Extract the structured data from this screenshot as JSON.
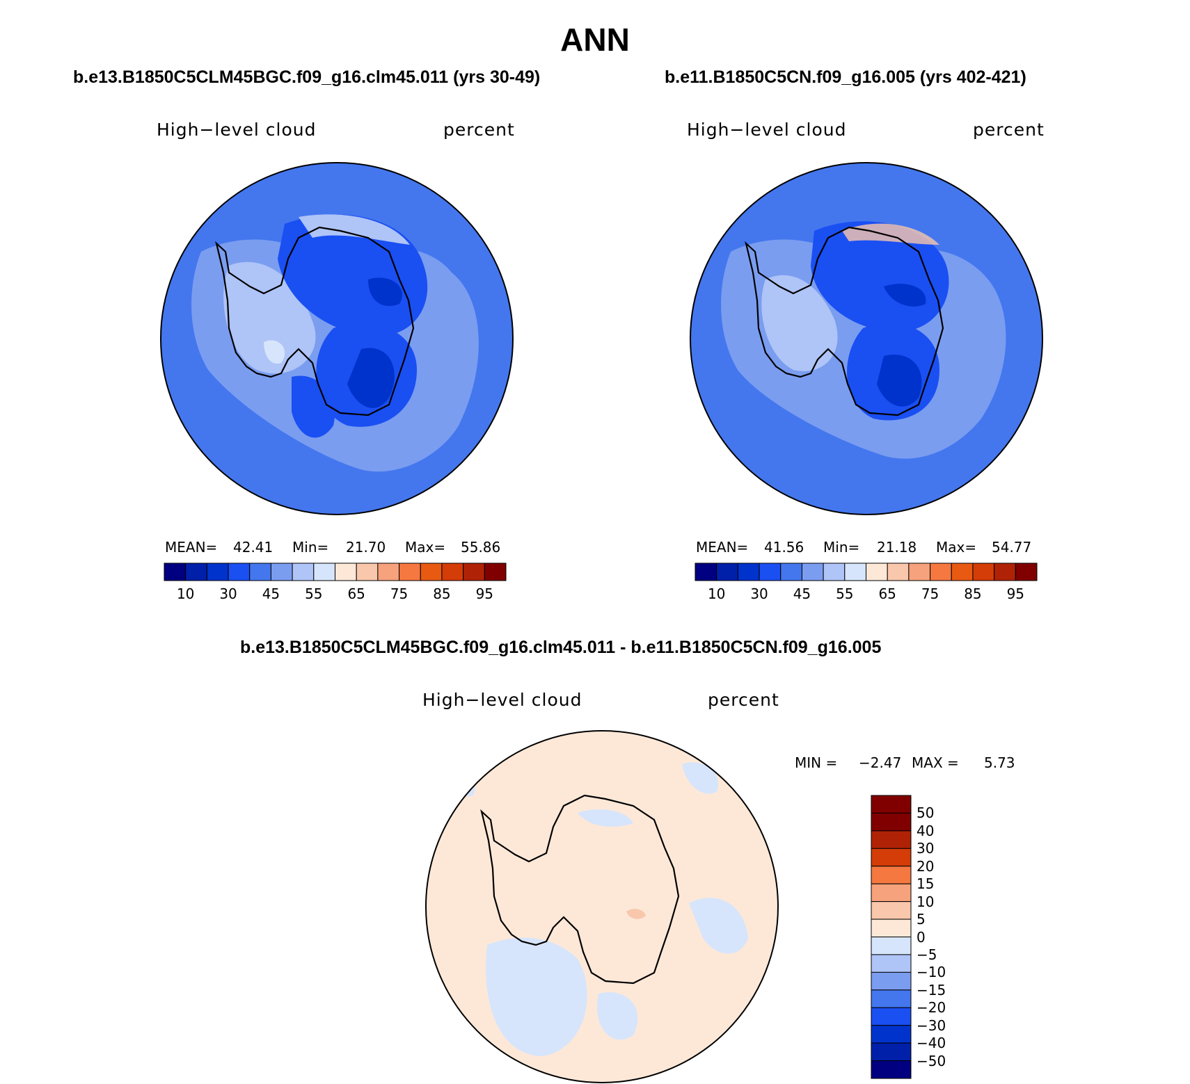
{
  "title": "ANN",
  "colors": {
    "abs_scale": [
      "#000080",
      "#0020aa",
      "#0033cc",
      "#1a4ff2",
      "#4477ee",
      "#7a9df0",
      "#afc4f7",
      "#d6e5fb",
      "#fde8d8",
      "#f9c7ab",
      "#f6a27c",
      "#f47840",
      "#e85a12",
      "#d43c08",
      "#b02206",
      "#800000"
    ],
    "diff_scale": [
      "#800000",
      "#b02206",
      "#d43c08",
      "#f47840",
      "#f6a27c",
      "#f9c7ab",
      "#fde8d8",
      "#d6e5fb",
      "#afc4f7",
      "#7a9df0",
      "#4477ee",
      "#1a4ff2",
      "#0033cc",
      "#0020aa",
      "#000080"
    ]
  },
  "panels": [
    {
      "case": "b.e13.B1850C5CLM45BGC.f09_g16.clm45.011 (yrs 30-49)",
      "field": "High−level cloud",
      "units": "percent",
      "mean_label": "MEAN=",
      "mean": "42.41",
      "min_label": "Min=",
      "min": "21.70",
      "max_label": "Max=",
      "max": "55.86",
      "ticks": [
        "10",
        "30",
        "45",
        "55",
        "65",
        "75",
        "85",
        "95"
      ]
    },
    {
      "case": "b.e11.B1850C5CN.f09_g16.005 (yrs 402-421)",
      "field": "High−level cloud",
      "units": "percent",
      "mean_label": "MEAN=",
      "mean": "41.56",
      "min_label": "Min=",
      "min": "21.18",
      "max_label": "Max=",
      "max": "54.77",
      "ticks": [
        "10",
        "30",
        "45",
        "55",
        "65",
        "75",
        "85",
        "95"
      ]
    }
  ],
  "diff": {
    "title": "b.e13.B1850C5CLM45BGC.f09_g16.clm45.011 - b.e11.B1850C5CN.f09_g16.005",
    "field": "High−level cloud",
    "units": "percent",
    "min_label": "MIN =",
    "min": "−2.47",
    "max_label": "MAX =",
    "max": "5.73",
    "ticks": [
      "50",
      "40",
      "30",
      "20",
      "15",
      "10",
      "5",
      "0",
      "−5",
      "−10",
      "−15",
      "−20",
      "−30",
      "−40",
      "−50"
    ]
  }
}
